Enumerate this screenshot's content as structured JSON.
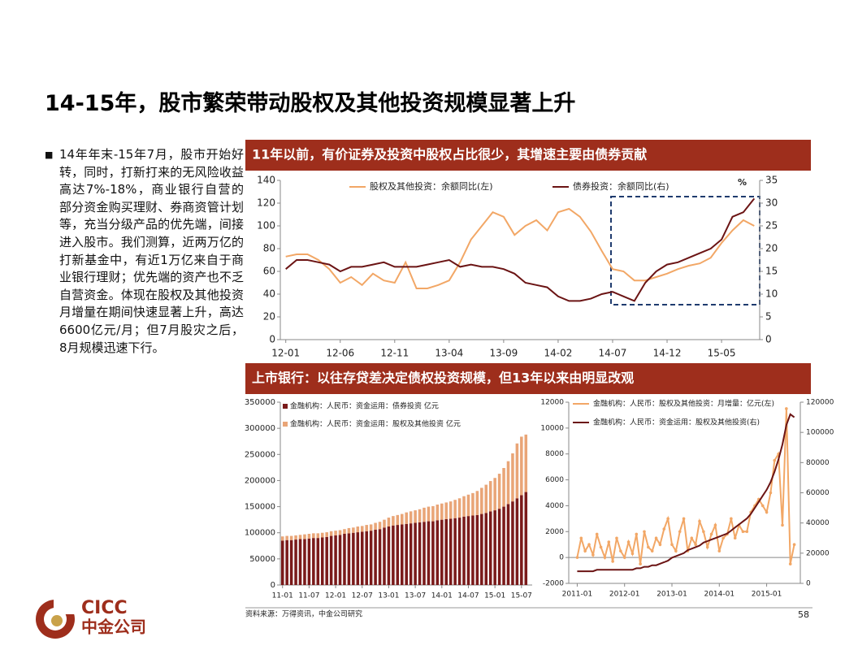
{
  "title": "14-15年，股市繁荣带动股权及其他投资规模显著上升",
  "bullet": "14年年末-15年7月，股市开始好转，同时，打新打来的无风险收益高达7%-18%，商业银行自营的部分资金购买理财、券商资管计划等，充当分级产品的优先端，间接进入股市。我们测算，近两万亿的打新基金中，有近1万亿来自于商业银行理财；优先端的资产也不乏自营资金。体现在股权及其他投资月增量在期间快速显著上升，高达6600亿元/月；但7月股灾之后，8月规模迅速下行。",
  "source": "资料来源：万得资讯，中金公司研究",
  "page_number": "58",
  "logo": {
    "en": "CICC",
    "cn": "中金公司"
  },
  "chart_data": [
    {
      "type": "line",
      "title": "11年以前，有价证券及投资中股权占比很少，其增速主要由债券贡献",
      "categories": [
        "12-01",
        null,
        null,
        null,
        null,
        "12-06",
        null,
        null,
        null,
        null,
        "12-11",
        null,
        null,
        null,
        null,
        "13-04",
        null,
        null,
        null,
        null,
        "13-09",
        null,
        null,
        null,
        null,
        "14-02",
        null,
        null,
        null,
        null,
        "14-07",
        null,
        null,
        null,
        null,
        "14-12",
        null,
        null,
        null,
        null,
        "15-05",
        null,
        null,
        null
      ],
      "series": [
        {
          "name": "股权及其他投资：余额同比(左)",
          "color": "#f2a766",
          "axis": "y",
          "values": [
            73,
            75,
            75,
            70,
            62,
            50,
            55,
            48,
            58,
            52,
            50,
            68,
            45,
            45,
            48,
            52,
            68,
            88,
            100,
            112,
            108,
            92,
            100,
            105,
            96,
            112,
            115,
            108,
            95,
            78,
            62,
            60,
            52,
            52,
            55,
            58,
            62,
            65,
            67,
            72,
            85,
            96,
            105,
            100
          ]
        },
        {
          "name": "债券投资：余额同比(右)",
          "color": "#6b1414",
          "axis": "y2",
          "values": [
            15.5,
            17.5,
            17.5,
            17,
            16.5,
            15,
            16,
            16,
            16.5,
            17,
            16,
            16,
            16,
            16.5,
            17,
            17.5,
            16,
            16.5,
            16,
            16,
            15.5,
            14.5,
            12.5,
            12,
            11.5,
            9.5,
            8.5,
            8.5,
            9,
            10,
            10.5,
            9.5,
            8.5,
            12.5,
            15,
            16.5,
            17,
            18,
            19,
            20,
            22,
            27,
            28,
            31
          ]
        }
      ],
      "ylim": [
        0,
        140
      ],
      "yticks": [
        0,
        20,
        40,
        60,
        80,
        100,
        120,
        140
      ],
      "y2lim": [
        0,
        35
      ],
      "y2ticks": [
        0,
        5,
        10,
        15,
        20,
        25,
        30,
        35
      ],
      "y2label": "%",
      "legend": "top"
    },
    {
      "type": "bar",
      "title": "上市银行：以往存贷差决定债权投资规模，但13年以来由明显改观",
      "stacked": true,
      "categories": [
        "11-01",
        null,
        null,
        null,
        null,
        null,
        "11-07",
        null,
        null,
        null,
        null,
        null,
        "12-01",
        null,
        null,
        null,
        null,
        null,
        "12-07",
        null,
        null,
        null,
        null,
        null,
        "13-01",
        null,
        null,
        null,
        null,
        null,
        "13-07",
        null,
        null,
        null,
        null,
        null,
        "14-01",
        null,
        null,
        null,
        null,
        null,
        "14-07",
        null,
        null,
        null,
        null,
        null,
        "15-01",
        null,
        null,
        null,
        null,
        null,
        "15-07",
        null
      ],
      "series": [
        {
          "name": "金融机构：人民币：资金运用：债券投资 亿元",
          "color": "#7a1a1a",
          "values": [
            85000,
            86000,
            86000,
            87000,
            88000,
            88000,
            89000,
            90000,
            90000,
            91000,
            92000,
            94000,
            95000,
            96000,
            98000,
            99000,
            100000,
            101000,
            102000,
            103000,
            104000,
            106000,
            107000,
            110000,
            112000,
            114000,
            115000,
            116000,
            117000,
            118000,
            119000,
            120000,
            121000,
            122000,
            122000,
            124000,
            125000,
            126000,
            127000,
            128000,
            129000,
            131000,
            132000,
            133000,
            134000,
            136000,
            138000,
            141000,
            143000,
            146000,
            150000,
            155000,
            160000,
            166000,
            172000,
            178000
          ]
        },
        {
          "name": "金融机构：人民币：资金运用：股权及其他投资 亿元",
          "color": "#e9a577",
          "values": [
            8000,
            8000,
            8000,
            8000,
            8000,
            9000,
            9000,
            9000,
            9000,
            9000,
            9000,
            9000,
            9000,
            9000,
            9000,
            10000,
            10000,
            11000,
            11000,
            12000,
            12000,
            13000,
            14000,
            15000,
            17000,
            18000,
            19000,
            20000,
            22000,
            23000,
            24000,
            25000,
            27000,
            28000,
            29000,
            30000,
            31000,
            32000,
            33000,
            35000,
            37000,
            39000,
            41000,
            43000,
            46000,
            50000,
            54000,
            58000,
            62000,
            67000,
            74000,
            82000,
            92000,
            105000,
            112000,
            110000
          ]
        }
      ],
      "ylim": [
        0,
        350000
      ],
      "yticks": [
        0,
        50000,
        100000,
        150000,
        200000,
        250000,
        300000,
        350000
      ],
      "legend": "top-left"
    },
    {
      "type": "line",
      "categories": [
        "2011-01",
        null,
        null,
        null,
        null,
        null,
        null,
        null,
        null,
        null,
        null,
        null,
        "2012-01",
        null,
        null,
        null,
        null,
        null,
        null,
        null,
        null,
        null,
        null,
        null,
        "2013-01",
        null,
        null,
        null,
        null,
        null,
        null,
        null,
        null,
        null,
        null,
        null,
        "2014-01",
        null,
        null,
        null,
        null,
        null,
        null,
        null,
        null,
        null,
        null,
        null,
        "2015-01",
        null,
        null,
        null,
        null,
        null,
        null,
        null
      ],
      "series": [
        {
          "name": "金融机构：人民币：股权及其他投资：月增量：亿元(左)",
          "color": "#f2a766",
          "axis": "y",
          "markers": true,
          "values": [
            0,
            1500,
            500,
            1000,
            200,
            1800,
            800,
            0,
            1200,
            -300,
            1500,
            500,
            0,
            1200,
            300,
            1800,
            -500,
            2000,
            800,
            500,
            1500,
            1000,
            2200,
            3000,
            1000,
            500,
            2000,
            3000,
            500,
            1500,
            1000,
            2800,
            2000,
            800,
            1800,
            2500,
            500,
            1500,
            1800,
            3000,
            1500,
            2500,
            2000,
            2000,
            3500,
            4000,
            4500,
            4000,
            3500,
            5000,
            7500,
            8000,
            2500,
            11500,
            -500,
            1000
          ]
        },
        {
          "name": "金融机构：人民币：资金运用：股权及其他投资(右)",
          "color": "#6b1414",
          "axis": "y2",
          "values": [
            8000,
            8000,
            8000,
            8000,
            8000,
            9000,
            9000,
            9000,
            9000,
            9000,
            9000,
            9000,
            9000,
            9000,
            9000,
            10000,
            10000,
            11000,
            11000,
            12000,
            12000,
            13000,
            14000,
            15000,
            17000,
            18000,
            19000,
            20000,
            22000,
            23000,
            24000,
            25000,
            27000,
            28000,
            29000,
            30000,
            31000,
            32000,
            33000,
            35000,
            37000,
            39000,
            41000,
            43000,
            46000,
            50000,
            54000,
            58000,
            62000,
            67000,
            74000,
            82000,
            92000,
            105000,
            112000,
            110000
          ]
        }
      ],
      "ylim": [
        -2000,
        12000
      ],
      "yticks": [
        -2000,
        0,
        2000,
        4000,
        6000,
        8000,
        10000,
        12000
      ],
      "y2lim": [
        0,
        120000
      ],
      "y2ticks": [
        0,
        20000,
        40000,
        60000,
        80000,
        100000,
        120000
      ],
      "legend": "top-left"
    }
  ]
}
